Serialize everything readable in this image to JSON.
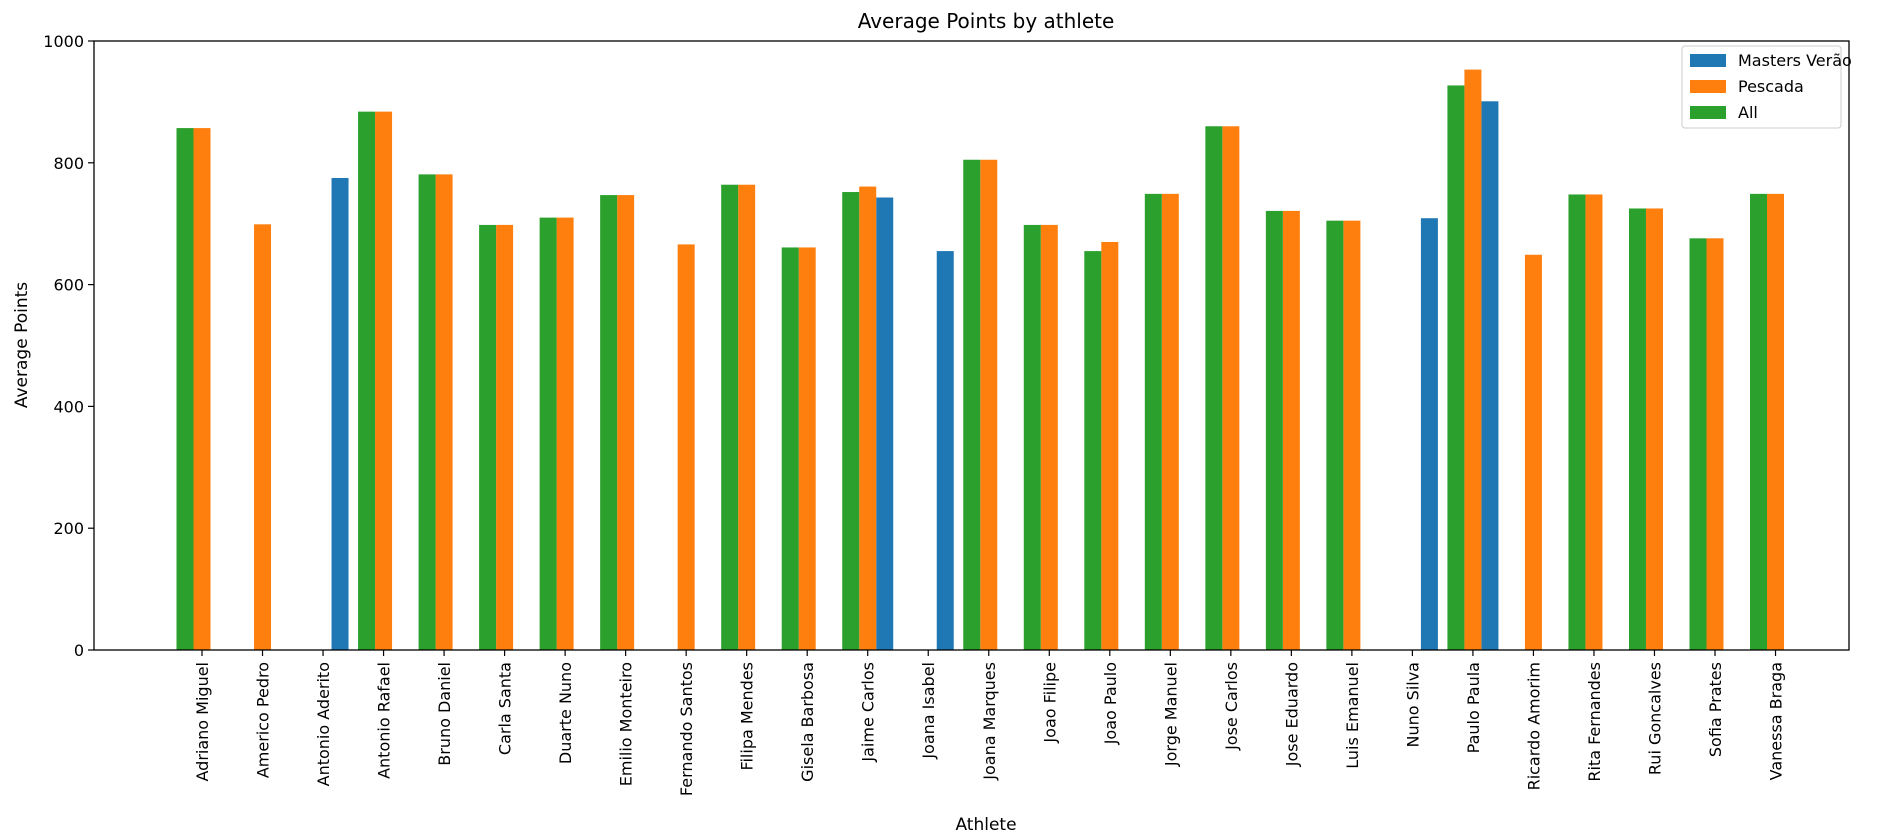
{
  "chart_data": {
    "type": "bar",
    "title": "Average Points by athlete",
    "xlabel": "Athlete",
    "ylabel": "Average Points",
    "ylim": [
      0,
      1000
    ],
    "yticks": [
      0,
      200,
      400,
      600,
      800,
      1000
    ],
    "legend_position": "top-right",
    "categories": [
      "Adriano Miguel",
      "Americo Pedro",
      "Antonio Aderito",
      "Antonio Rafael",
      "Bruno Daniel",
      "Carla Santa",
      "Duarte Nuno",
      "Emilio Monteiro",
      "Fernando Santos",
      "Filipa Mendes",
      "Gisela Barbosa",
      "Jaime Carlos",
      "Joana Isabel",
      "Joana Marques",
      "Joao Filipe",
      "Joao Paulo",
      "Jorge Manuel",
      "Jose Carlos",
      "Jose Eduardo",
      "Luis Emanuel",
      "Nuno Silva",
      "Paulo Paula",
      "Ricardo Amorim",
      "Rita Fernandes",
      "Rui Goncalves",
      "Sofia Prates",
      "Vanessa Braga"
    ],
    "series": [
      {
        "name": "Masters Verão",
        "color": "#1f77b4",
        "values": [
          null,
          null,
          775,
          null,
          null,
          null,
          null,
          null,
          null,
          null,
          null,
          743,
          655,
          null,
          null,
          null,
          null,
          null,
          null,
          null,
          709,
          901,
          null,
          null,
          null,
          null,
          null
        ]
      },
      {
        "name": "Pescada",
        "color": "#ff7f0e",
        "values": [
          857,
          699,
          null,
          884,
          781,
          698,
          710,
          747,
          666,
          764,
          661,
          761,
          null,
          805,
          698,
          670,
          749,
          860,
          721,
          705,
          null,
          953,
          649,
          748,
          725,
          676,
          749
        ]
      },
      {
        "name": "All",
        "color": "#2ca02c",
        "values": [
          857,
          null,
          null,
          884,
          781,
          698,
          710,
          747,
          null,
          764,
          661,
          752,
          null,
          805,
          698,
          655,
          749,
          860,
          721,
          705,
          null,
          927,
          null,
          748,
          725,
          676,
          749
        ]
      }
    ]
  }
}
